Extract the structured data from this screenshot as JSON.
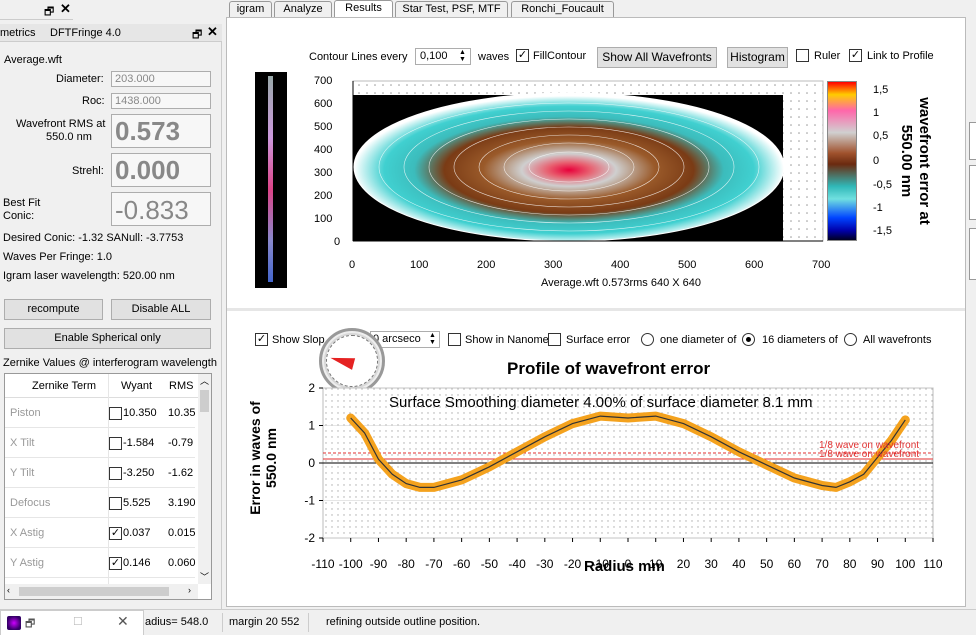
{
  "tabs": [
    "igram",
    "Analyze",
    "Results",
    "Star Test, PSF, MTF",
    "Ronchi_Foucault"
  ],
  "active_tab": "Results",
  "panel_left": {
    "title": "metrics",
    "title2": "DFTFringe 4.0"
  },
  "metrics": {
    "filename": "Average.wft",
    "diameter_label": "Diameter:",
    "diameter": "203.000",
    "roc_label": "Roc:",
    "roc": "1438.000",
    "rms_label_1": "Wavefront RMS at",
    "rms_label_2": "550.0 nm",
    "rms": "0.573",
    "strehl_label": "Strehl:",
    "strehl": "0.000",
    "conic_label_1": "Best Fit",
    "conic_label_2": "Conic:",
    "conic": "-0.833",
    "desired_conic": "Desired Conic:  -1.32  SANull:  -3.7753",
    "waves_per_fringe": "Waves Per Fringe:  1.0",
    "laser": "Igram laser wavelength:  520.00 nm"
  },
  "buttons": {
    "recompute": "recompute",
    "disable_all": "Disable ALL",
    "spherical": "Enable Spherical only"
  },
  "zernike": {
    "title": "Zernike Values @ interferogram wavelength",
    "headers": [
      "Zernike Term",
      "Wyant",
      "RMS"
    ],
    "rows": [
      {
        "term": "Piston",
        "checked": "",
        "wyant": "10.350",
        "rms": "10.35"
      },
      {
        "term": "X Tilt",
        "checked": "",
        "wyant": "-1.584",
        "rms": "-0.79"
      },
      {
        "term": "Y Tilt",
        "checked": "",
        "wyant": "-3.250",
        "rms": "-1.62"
      },
      {
        "term": "Defocus",
        "checked": "",
        "wyant": "5.525",
        "rms": "3.190"
      },
      {
        "term": "X Astig",
        "checked": "✓",
        "wyant": "0.037",
        "rms": "0.015"
      },
      {
        "term": "Y Astig",
        "checked": "✓",
        "wyant": "0.146",
        "rms": "0.060"
      }
    ]
  },
  "contour": {
    "contour_label": "Contour Lines every",
    "contour_value": "0,100",
    "waves": "waves",
    "fill_label": "FillContour",
    "show_all": "Show All Wavefronts",
    "histogram": "Histogram",
    "ruler": "Ruler",
    "link": "Link to Profile",
    "caption": "Average.wft  0.573rms 640 X 640",
    "x_ticks": [
      "0",
      "100",
      "200",
      "300",
      "400",
      "500",
      "600",
      "700"
    ],
    "y_ticks": [
      "700",
      "600",
      "500",
      "400",
      "300",
      "200",
      "100",
      "0"
    ],
    "scale_ticks": [
      "1,5",
      "1",
      "0,5",
      "0",
      "-0,5",
      "-1",
      "-1,5"
    ],
    "scale_title_1": "wavefront error at",
    "scale_title_2": "550.00 nm"
  },
  "profile_controls": {
    "show_slope": "Show Slop",
    "arcsec": "0 arcseco",
    "show_nm": "Show in Nanome",
    "surface_error": "Surface error",
    "one_diameter": "one diameter of",
    "sixteen": "16 diameters of",
    "all": "All wavefronts"
  },
  "chart_data": {
    "type": "line",
    "title": "Profile of wavefront error",
    "subtitle": "Surface Smoothing diameter    4.00% of surface diameter     8.1 mm",
    "xlabel": "Radius mm",
    "ylabel": "Error in waves of  550.0 nm",
    "xlim": [
      -110,
      110
    ],
    "ylim": [
      -2,
      2
    ],
    "x_ticks": [
      "-110",
      "-100",
      "-90",
      "-80",
      "-70",
      "-60",
      "-50",
      "-40",
      "-30",
      "-20",
      "-10",
      "0",
      "10",
      "20",
      "30",
      "40",
      "50",
      "60",
      "70",
      "80",
      "90",
      "100",
      "110"
    ],
    "y_ticks": [
      "2",
      "1",
      "0",
      "-1",
      "-2"
    ],
    "annotation_1": "1/8 wave on wavefront",
    "annotation_2": "1/8 wave on wavefront",
    "x": [
      -100,
      -95,
      -90,
      -85,
      -80,
      -75,
      -70,
      -60,
      -50,
      -40,
      -30,
      -20,
      -10,
      0,
      10,
      20,
      30,
      40,
      50,
      60,
      70,
      75,
      80,
      85,
      90,
      95,
      100
    ],
    "y": [
      1.2,
      0.8,
      0.1,
      -0.3,
      -0.55,
      -0.65,
      -0.65,
      -0.45,
      -0.1,
      0.3,
      0.7,
      1.05,
      1.25,
      1.2,
      1.25,
      1.05,
      0.7,
      0.3,
      -0.05,
      -0.4,
      -0.6,
      -0.65,
      -0.5,
      -0.3,
      0.15,
      0.6,
      1.15
    ]
  },
  "status": {
    "radius": "adius=  548.0",
    "margin": "margin 20 552",
    "message": "refining outside outline position."
  }
}
